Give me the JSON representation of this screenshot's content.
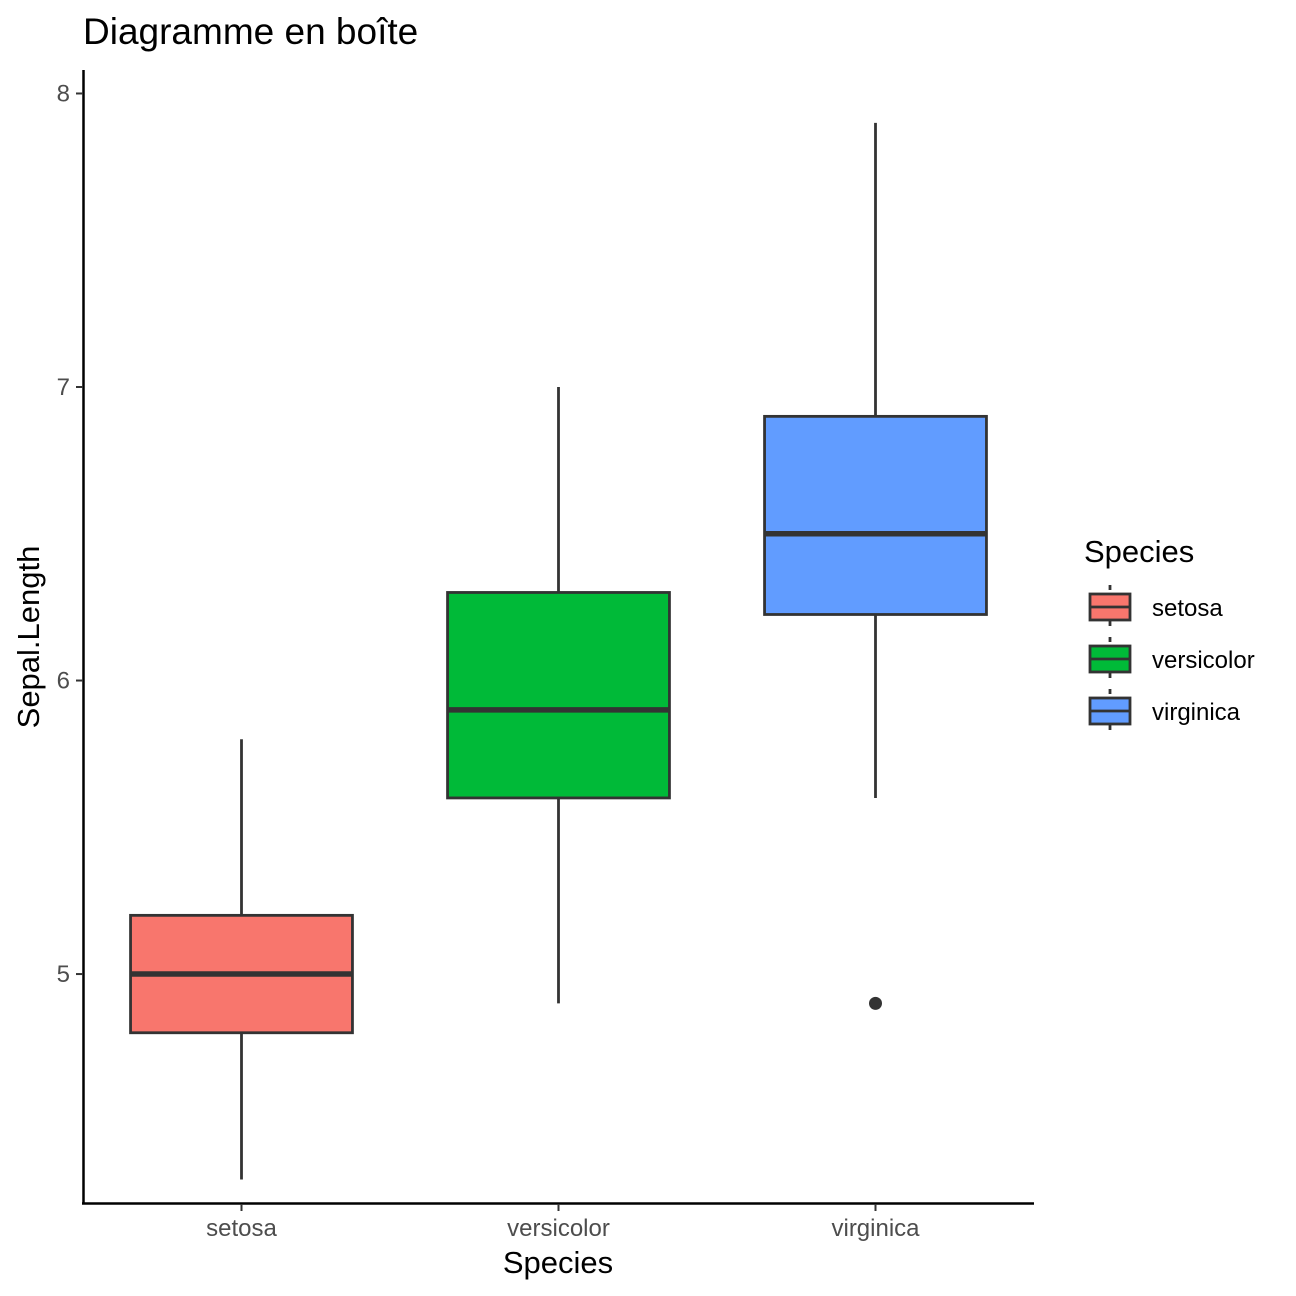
{
  "chart_data": {
    "type": "box",
    "title": "Diagramme en boîte",
    "xlabel": "Species",
    "ylabel": "Sepal.Length",
    "ylim": [
      4.22,
      8.08
    ],
    "yticks": [
      5,
      6,
      7,
      8
    ],
    "categories": [
      "setosa",
      "versicolor",
      "virginica"
    ],
    "boxes": [
      {
        "name": "setosa",
        "min": 4.3,
        "q1": 4.8,
        "median": 5.0,
        "q3": 5.2,
        "max": 5.8,
        "outliers": [],
        "color": "#F8766D"
      },
      {
        "name": "versicolor",
        "min": 4.9,
        "q1": 5.6,
        "median": 5.9,
        "q3": 6.3,
        "max": 7.0,
        "outliers": [],
        "color": "#00BA38"
      },
      {
        "name": "virginica",
        "min": 5.6,
        "q1": 6.225,
        "median": 6.5,
        "q3": 6.9,
        "max": 7.9,
        "outliers": [
          4.9
        ],
        "color": "#619CFF"
      }
    ],
    "legend": {
      "title": "Species",
      "position": "right",
      "items": [
        "setosa",
        "versicolor",
        "virginica"
      ]
    },
    "grid": false
  }
}
